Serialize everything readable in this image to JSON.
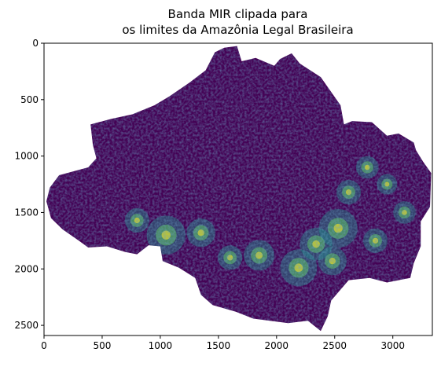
{
  "title": {
    "line1": "Banda MIR clipada para",
    "line2": "os limites da Amazônia Legal Brasileira"
  },
  "colors": {
    "background": "#ffffff",
    "mask": "#440154",
    "viridis": [
      "#440154",
      "#3b528b",
      "#21918c",
      "#5ec962",
      "#fde725"
    ]
  },
  "chart_data": {
    "type": "heatmap",
    "title": "Banda MIR clipada para os limites da Amazônia Legal Brasileira",
    "colormap": "viridis",
    "xlim": [
      0,
      3340
    ],
    "ylim": [
      2590,
      0
    ],
    "x_ticks": [
      0,
      500,
      1000,
      1500,
      2000,
      2500,
      3000
    ],
    "y_ticks": [
      0,
      500,
      1000,
      1500,
      2000,
      2500
    ],
    "x_tick_labels": [
      "0",
      "500",
      "1000",
      "1500",
      "2000",
      "2500",
      "3000"
    ],
    "y_tick_labels": [
      "0",
      "500",
      "1000",
      "1500",
      "2000",
      "2500"
    ],
    "region_outline": [
      [
        1470,
        80
      ],
      [
        1550,
        40
      ],
      [
        1660,
        25
      ],
      [
        1700,
        160
      ],
      [
        1820,
        130
      ],
      [
        1980,
        200
      ],
      [
        2030,
        140
      ],
      [
        2130,
        90
      ],
      [
        2200,
        180
      ],
      [
        2380,
        300
      ],
      [
        2550,
        550
      ],
      [
        2580,
        720
      ],
      [
        2650,
        690
      ],
      [
        2820,
        700
      ],
      [
        2950,
        820
      ],
      [
        3050,
        800
      ],
      [
        3180,
        880
      ],
      [
        3200,
        950
      ],
      [
        3260,
        1050
      ],
      [
        3330,
        1150
      ],
      [
        3320,
        1450
      ],
      [
        3240,
        1580
      ],
      [
        3240,
        1800
      ],
      [
        3180,
        1950
      ],
      [
        3150,
        2080
      ],
      [
        2950,
        2120
      ],
      [
        2800,
        2080
      ],
      [
        2620,
        2100
      ],
      [
        2470,
        2280
      ],
      [
        2440,
        2420
      ],
      [
        2380,
        2550
      ],
      [
        2270,
        2460
      ],
      [
        2100,
        2480
      ],
      [
        1800,
        2440
      ],
      [
        1650,
        2380
      ],
      [
        1450,
        2320
      ],
      [
        1350,
        2230
      ],
      [
        1300,
        2080
      ],
      [
        1160,
        1990
      ],
      [
        1020,
        1930
      ],
      [
        1000,
        1800
      ],
      [
        900,
        1790
      ],
      [
        800,
        1870
      ],
      [
        700,
        1850
      ],
      [
        540,
        1800
      ],
      [
        380,
        1810
      ],
      [
        300,
        1750
      ],
      [
        160,
        1650
      ],
      [
        60,
        1550
      ],
      [
        20,
        1400
      ],
      [
        50,
        1280
      ],
      [
        130,
        1170
      ],
      [
        380,
        1100
      ],
      [
        450,
        1020
      ],
      [
        420,
        900
      ],
      [
        400,
        720
      ],
      [
        580,
        670
      ],
      [
        760,
        630
      ],
      [
        950,
        550
      ],
      [
        1080,
        470
      ],
      [
        1250,
        350
      ],
      [
        1390,
        240
      ]
    ],
    "hotspots": [
      {
        "x": 2530,
        "y": 1640,
        "intensity": 0.95
      },
      {
        "x": 2340,
        "y": 1780,
        "intensity": 0.8
      },
      {
        "x": 2190,
        "y": 1990,
        "intensity": 0.9
      },
      {
        "x": 2480,
        "y": 1930,
        "intensity": 0.7
      },
      {
        "x": 1050,
        "y": 1700,
        "intensity": 0.95
      },
      {
        "x": 1350,
        "y": 1680,
        "intensity": 0.7
      },
      {
        "x": 1850,
        "y": 1880,
        "intensity": 0.75
      },
      {
        "x": 2620,
        "y": 1320,
        "intensity": 0.6
      },
      {
        "x": 2780,
        "y": 1100,
        "intensity": 0.55
      },
      {
        "x": 2950,
        "y": 1250,
        "intensity": 0.5
      },
      {
        "x": 3100,
        "y": 1500,
        "intensity": 0.55
      },
      {
        "x": 800,
        "y": 1570,
        "intensity": 0.6
      },
      {
        "x": 1600,
        "y": 1900,
        "intensity": 0.6
      },
      {
        "x": 2850,
        "y": 1750,
        "intensity": 0.6
      }
    ]
  }
}
